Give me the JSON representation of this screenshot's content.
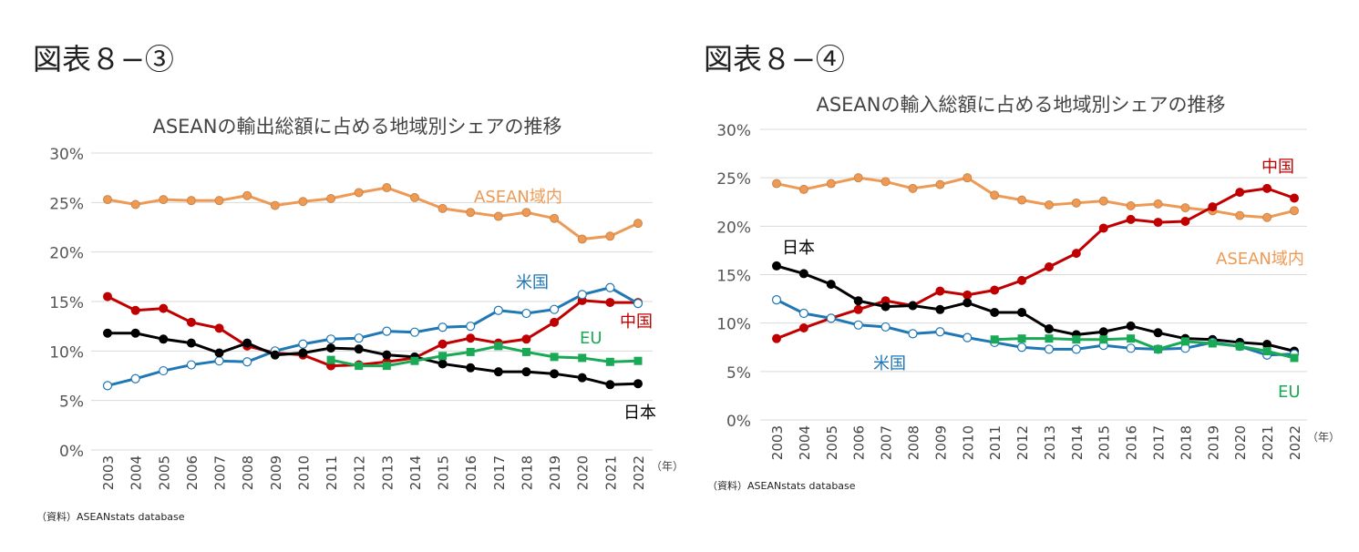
{
  "figures": [
    {
      "label": "図表８−③"
    },
    {
      "label": "図表８−④"
    }
  ],
  "chart_data": [
    {
      "type": "line",
      "title": "ASEANの輸出総額に占める地域別シェアの推移",
      "x_unit": "（年）",
      "source": "（資料）ASEANstats database",
      "x": [
        2003,
        2004,
        2005,
        2006,
        2007,
        2008,
        2009,
        2010,
        2011,
        2012,
        2013,
        2014,
        2015,
        2016,
        2017,
        2018,
        2019,
        2020,
        2021,
        2022
      ],
      "ylim": [
        0,
        30
      ],
      "yticks": [
        "0%",
        "5%",
        "10%",
        "15%",
        "20%",
        "25%",
        "30%"
      ],
      "grid": true,
      "series": [
        {
          "name": "ASEAN域内",
          "color": "#EE9A55",
          "marker": "circle",
          "values": [
            25.3,
            24.8,
            25.3,
            25.2,
            25.2,
            25.7,
            24.7,
            25.1,
            25.4,
            26.0,
            26.5,
            25.5,
            24.4,
            24.0,
            23.6,
            24.0,
            23.4,
            21.3,
            21.6,
            22.9
          ]
        },
        {
          "name": "中国",
          "color": "#C00000",
          "marker": "circle",
          "values": [
            15.5,
            14.1,
            14.3,
            12.9,
            12.3,
            10.5,
            9.8,
            9.6,
            8.5,
            8.6,
            8.9,
            9.3,
            10.7,
            11.3,
            10.8,
            11.2,
            12.9,
            15.1,
            14.9,
            14.9
          ]
        },
        {
          "name": "米国",
          "color": "#1F77B4",
          "marker": "open-circle",
          "values": [
            6.5,
            7.2,
            8.0,
            8.6,
            9.0,
            8.9,
            10.0,
            10.7,
            11.2,
            11.3,
            12.0,
            11.9,
            12.4,
            12.5,
            14.1,
            13.8,
            14.2,
            15.7,
            16.4,
            14.8
          ]
        },
        {
          "name": "日本",
          "color": "#000000",
          "marker": "circle",
          "values": [
            11.8,
            11.8,
            11.2,
            10.8,
            9.8,
            10.8,
            9.6,
            9.8,
            10.3,
            10.2,
            9.6,
            9.4,
            8.7,
            8.3,
            7.9,
            7.9,
            7.7,
            7.3,
            6.6,
            6.7
          ]
        },
        {
          "name": "EU",
          "color": "#1AAA55",
          "marker": "square",
          "values": [
            null,
            null,
            null,
            null,
            null,
            null,
            null,
            null,
            9.1,
            8.5,
            8.5,
            9.0,
            9.5,
            9.9,
            10.5,
            9.9,
            9.4,
            9.3,
            8.9,
            9.0
          ]
        }
      ]
    },
    {
      "type": "line",
      "title": "ASEANの輸入総額に占める地域別シェアの推移",
      "x_unit": "（年）",
      "source": "（資料）ASEANstats database",
      "x": [
        2003,
        2004,
        2005,
        2006,
        2007,
        2008,
        2009,
        2010,
        2011,
        2012,
        2013,
        2014,
        2015,
        2016,
        2017,
        2018,
        2019,
        2020,
        2021,
        2022
      ],
      "ylim": [
        0,
        30
      ],
      "yticks": [
        "0%",
        "5%",
        "10%",
        "15%",
        "20%",
        "25%",
        "30%"
      ],
      "grid": true,
      "series": [
        {
          "name": "ASEAN域内",
          "color": "#EE9A55",
          "marker": "circle",
          "values": [
            24.4,
            23.8,
            24.4,
            25.0,
            24.6,
            23.9,
            24.3,
            25.0,
            23.2,
            22.7,
            22.2,
            22.4,
            22.6,
            22.1,
            22.3,
            21.9,
            21.6,
            21.1,
            20.9,
            21.6
          ]
        },
        {
          "name": "中国",
          "color": "#C00000",
          "marker": "circle",
          "values": [
            8.4,
            9.5,
            10.5,
            11.4,
            12.3,
            11.8,
            13.3,
            12.9,
            13.4,
            14.4,
            15.8,
            17.2,
            19.8,
            20.7,
            20.4,
            20.5,
            22.0,
            23.5,
            23.9,
            22.9
          ]
        },
        {
          "name": "日本",
          "color": "#000000",
          "marker": "circle",
          "values": [
            15.9,
            15.1,
            14.0,
            12.3,
            11.7,
            11.8,
            11.4,
            12.1,
            11.1,
            11.1,
            9.4,
            8.8,
            9.1,
            9.7,
            9.0,
            8.4,
            8.3,
            8.0,
            7.8,
            7.1
          ]
        },
        {
          "name": "米国",
          "color": "#1F77B4",
          "marker": "open-circle",
          "values": [
            12.4,
            11.0,
            10.5,
            9.8,
            9.6,
            8.9,
            9.1,
            8.5,
            8.0,
            7.5,
            7.3,
            7.3,
            7.7,
            7.4,
            7.3,
            7.4,
            8.0,
            7.6,
            6.7,
            6.8
          ]
        },
        {
          "name": "EU",
          "color": "#1AAA55",
          "marker": "square",
          "values": [
            null,
            null,
            null,
            null,
            null,
            null,
            null,
            null,
            8.3,
            8.4,
            8.4,
            8.3,
            8.3,
            8.4,
            7.3,
            8.1,
            7.9,
            7.6,
            7.1,
            6.4
          ]
        }
      ]
    }
  ]
}
